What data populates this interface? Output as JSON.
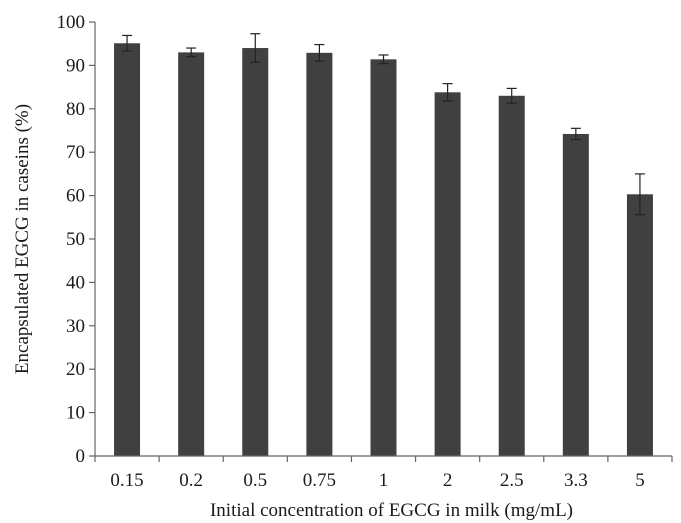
{
  "chart_data": {
    "type": "bar",
    "categories": [
      "0.15",
      "0.2",
      "0.5",
      "0.75",
      "1",
      "2",
      "2.5",
      "3.3",
      "5"
    ],
    "values": [
      95.1,
      93.0,
      94.0,
      92.9,
      91.4,
      83.8,
      83.0,
      74.2,
      60.3
    ],
    "error": [
      1.8,
      1.0,
      3.3,
      1.9,
      1.0,
      2.0,
      1.7,
      1.3,
      4.7
    ],
    "title": "",
    "xlabel": "Initial concentration of EGCG in milk (mg/mL)",
    "ylabel": "Encapsulated  EGCG in caseins (%)",
    "ylim": [
      0,
      100
    ],
    "yticks": [
      "0",
      "10",
      "20",
      "30",
      "40",
      "50",
      "60",
      "70",
      "80",
      "90",
      "100"
    ],
    "grid": false,
    "bar_color": "#404040",
    "axis_color": "#666666"
  }
}
